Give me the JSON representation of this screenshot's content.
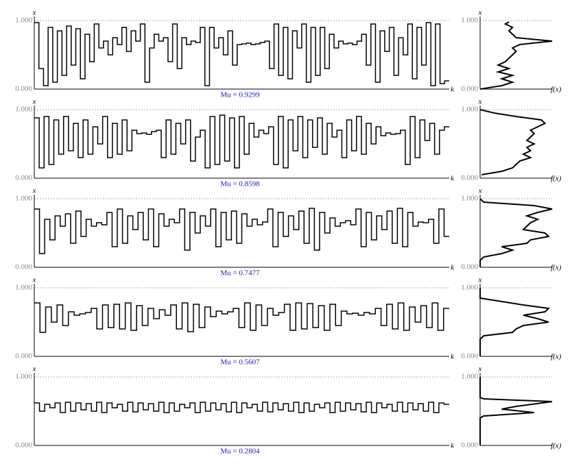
{
  "chart_data": [
    {
      "type": "step",
      "ylabel": "x",
      "xlabel": "k",
      "title": "Mu = 0.9299",
      "ylim": [
        0,
        1
      ],
      "yticks": [
        {
          "value": 0,
          "label": "0.000"
        },
        {
          "value": 1,
          "label": "1.000"
        }
      ],
      "values": [
        0.97,
        0.3,
        0.05,
        0.9,
        0.1,
        0.85,
        0.2,
        0.92,
        0.35,
        0.88,
        0.15,
        0.8,
        0.4,
        0.95,
        0.6,
        0.7,
        0.5,
        0.75,
        0.65,
        0.9,
        0.55,
        0.85,
        0.7,
        0.95,
        0.1,
        0.6,
        0.8,
        0.7,
        0.75,
        0.4,
        0.95,
        0.3,
        0.75,
        0.65,
        0.7,
        0.68,
        0.9,
        0.05,
        0.9,
        0.6,
        0.75,
        0.5,
        0.85,
        0.35,
        0.65,
        0.66,
        0.67,
        0.65,
        0.66,
        0.68,
        0.7,
        0.3,
        0.95,
        0.2,
        0.9,
        0.15,
        0.85,
        0.6,
        0.95,
        0.1,
        0.9,
        0.2,
        0.9,
        0.3,
        0.8,
        0.6,
        0.7,
        0.66,
        0.67,
        0.65,
        0.7,
        0.8,
        0.35,
        0.95,
        0.1,
        0.85,
        0.55,
        0.9,
        0.2,
        0.75,
        0.5,
        0.95,
        0.15,
        0.9,
        0.35,
        0.97,
        0.05,
        0.95,
        0.08,
        0.12
      ]
    },
    {
      "type": "density",
      "ylabel": "x",
      "xlabel": "f(x)",
      "ylim": [
        0,
        1
      ],
      "xlim": [
        0,
        1
      ],
      "yticks": [
        {
          "value": 0,
          "label": "0.000"
        },
        {
          "value": 1,
          "label": "1.000"
        }
      ],
      "levels": [
        0,
        0.05,
        0.1,
        0.15,
        0.2,
        0.25,
        0.3,
        0.35,
        0.4,
        0.45,
        0.5,
        0.55,
        0.6,
        0.65,
        0.7,
        0.75,
        0.8,
        0.85,
        0.9,
        0.95,
        0.98
      ],
      "values": [
        0,
        0.3,
        0.45,
        0.3,
        0.45,
        0.25,
        0.4,
        0.25,
        0.35,
        0.4,
        0.45,
        0.5,
        0.45,
        0.55,
        1.0,
        0.5,
        0.45,
        0.4,
        0.45,
        0.35,
        0.4
      ]
    },
    {
      "type": "step",
      "ylabel": "x",
      "xlabel": "k",
      "title": "Mu = 0.8598",
      "ylim": [
        0,
        1
      ],
      "yticks": [
        {
          "value": 0,
          "label": "0.000"
        },
        {
          "value": 1,
          "label": "1.000"
        }
      ],
      "values": [
        0.88,
        0.15,
        0.9,
        0.2,
        0.85,
        0.35,
        0.9,
        0.4,
        0.8,
        0.3,
        0.85,
        0.35,
        0.75,
        0.5,
        0.9,
        0.3,
        0.8,
        0.35,
        0.85,
        0.4,
        0.7,
        0.65,
        0.66,
        0.64,
        0.68,
        0.7,
        0.3,
        0.85,
        0.35,
        0.8,
        0.5,
        0.85,
        0.25,
        0.6,
        0.7,
        0.15,
        0.9,
        0.2,
        0.92,
        0.25,
        0.88,
        0.15,
        0.9,
        0.35,
        0.8,
        0.6,
        0.7,
        0.65,
        0.75,
        0.2,
        0.9,
        0.15,
        0.85,
        0.4,
        0.9,
        0.3,
        0.85,
        0.45,
        0.88,
        0.35,
        0.8,
        0.6,
        0.7,
        0.3,
        0.85,
        0.4,
        0.9,
        0.35,
        0.8,
        0.5,
        0.75,
        0.62,
        0.66,
        0.64,
        0.65,
        0.7,
        0.2,
        0.9,
        0.3,
        0.85,
        0.55,
        0.8,
        0.35,
        0.7,
        0.75
      ]
    },
    {
      "type": "density",
      "ylabel": "x",
      "xlabel": "f(x)",
      "ylim": [
        0,
        1
      ],
      "xlim": [
        0,
        1
      ],
      "yticks": [
        {
          "value": 0,
          "label": "0.000"
        },
        {
          "value": 1,
          "label": "1.000"
        }
      ],
      "levels": [
        0.05,
        0.1,
        0.15,
        0.2,
        0.25,
        0.3,
        0.35,
        0.4,
        0.45,
        0.5,
        0.55,
        0.6,
        0.65,
        0.7,
        0.75,
        0.8,
        0.85,
        0.9,
        0.95,
        1.0
      ],
      "values": [
        0.02,
        0.3,
        0.45,
        0.5,
        0.55,
        0.7,
        0.6,
        0.7,
        0.65,
        0.75,
        0.65,
        0.7,
        0.75,
        0.7,
        0.8,
        0.9,
        0.85,
        0.5,
        0.2,
        0.0
      ]
    },
    {
      "type": "step",
      "ylabel": "x",
      "xlabel": "k",
      "title": "Mu = 0.7477",
      "ylim": [
        0,
        1
      ],
      "yticks": [
        {
          "value": 0,
          "label": "0.000"
        },
        {
          "value": 1,
          "label": "1.000"
        }
      ],
      "values": [
        0.85,
        0.2,
        0.7,
        0.4,
        0.75,
        0.6,
        0.78,
        0.35,
        0.82,
        0.45,
        0.7,
        0.6,
        0.65,
        0.62,
        0.8,
        0.3,
        0.85,
        0.35,
        0.75,
        0.55,
        0.8,
        0.4,
        0.85,
        0.3,
        0.78,
        0.6,
        0.7,
        0.65,
        0.85,
        0.25,
        0.8,
        0.5,
        0.75,
        0.6,
        0.85,
        0.3,
        0.8,
        0.4,
        0.82,
        0.35,
        0.78,
        0.6,
        0.7,
        0.62,
        0.66,
        0.85,
        0.3,
        0.8,
        0.45,
        0.75,
        0.55,
        0.82,
        0.35,
        0.86,
        0.25,
        0.8,
        0.5,
        0.72,
        0.6,
        0.65,
        0.68,
        0.62,
        0.85,
        0.3,
        0.8,
        0.4,
        0.75,
        0.55,
        0.82,
        0.35,
        0.86,
        0.3,
        0.8,
        0.6,
        0.66,
        0.65,
        0.7,
        0.35,
        0.85,
        0.45
      ]
    },
    {
      "type": "density",
      "ylabel": "x",
      "xlabel": "f(x)",
      "ylim": [
        0,
        1
      ],
      "xlim": [
        0,
        1
      ],
      "yticks": [
        {
          "value": 0,
          "label": "0.000"
        },
        {
          "value": 1,
          "label": "1.000"
        }
      ],
      "levels": [
        0,
        0.1,
        0.15,
        0.2,
        0.25,
        0.3,
        0.35,
        0.4,
        0.45,
        0.5,
        0.55,
        0.6,
        0.65,
        0.7,
        0.75,
        0.8,
        0.85,
        0.9,
        0.95,
        1.0
      ],
      "values": [
        0,
        0,
        0.05,
        0.3,
        0.45,
        0.3,
        0.65,
        0.7,
        0.95,
        0.9,
        0.6,
        0.65,
        0.7,
        0.8,
        0.65,
        0.8,
        1.0,
        0.75,
        0.05,
        0
      ]
    },
    {
      "type": "step",
      "ylabel": "x",
      "xlabel": "k",
      "title": "Mu = 0.5607",
      "ylim": [
        0,
        1
      ],
      "yticks": [
        {
          "value": 0,
          "label": "0.000"
        },
        {
          "value": 1,
          "label": "1.000"
        }
      ],
      "values": [
        0.78,
        0.35,
        0.72,
        0.5,
        0.75,
        0.45,
        0.65,
        0.6,
        0.62,
        0.64,
        0.7,
        0.4,
        0.75,
        0.42,
        0.76,
        0.4,
        0.78,
        0.38,
        0.74,
        0.45,
        0.7,
        0.55,
        0.68,
        0.6,
        0.75,
        0.4,
        0.78,
        0.36,
        0.76,
        0.42,
        0.72,
        0.58,
        0.66,
        0.62,
        0.65,
        0.7,
        0.42,
        0.78,
        0.38,
        0.75,
        0.45,
        0.7,
        0.6,
        0.64,
        0.76,
        0.38,
        0.78,
        0.4,
        0.77,
        0.42,
        0.74,
        0.38,
        0.76,
        0.45,
        0.66,
        0.62,
        0.63,
        0.6,
        0.64,
        0.62,
        0.7,
        0.45,
        0.76,
        0.4,
        0.78,
        0.38,
        0.72,
        0.5,
        0.74,
        0.42,
        0.78,
        0.38,
        0.7
      ]
    },
    {
      "type": "density",
      "ylabel": "x",
      "xlabel": "f(x)",
      "ylim": [
        0,
        1
      ],
      "xlim": [
        0,
        1
      ],
      "yticks": [
        {
          "value": 0,
          "label": "0.000"
        },
        {
          "value": 1,
          "label": "1.000"
        }
      ],
      "levels": [
        0,
        0.25,
        0.3,
        0.35,
        0.4,
        0.45,
        0.5,
        0.55,
        0.6,
        0.65,
        0.7,
        0.75,
        0.8,
        0.85,
        1.0
      ],
      "values": [
        0,
        0,
        0.05,
        0.45,
        0.5,
        0.6,
        0.95,
        0.8,
        0.6,
        0.9,
        0.95,
        0.6,
        0.3,
        0.0,
        0
      ]
    },
    {
      "type": "step",
      "ylabel": "x",
      "xlabel": "k",
      "title": "Mu = 0.2804",
      "ylim": [
        0,
        1
      ],
      "yticks": [
        {
          "value": 0,
          "label": "0.000"
        },
        {
          "value": 1,
          "label": "1.000"
        }
      ],
      "values": [
        0.62,
        0.5,
        0.6,
        0.55,
        0.62,
        0.48,
        0.63,
        0.5,
        0.62,
        0.52,
        0.61,
        0.5,
        0.63,
        0.48,
        0.62,
        0.55,
        0.6,
        0.5,
        0.63,
        0.49,
        0.62,
        0.52,
        0.61,
        0.5,
        0.63,
        0.48,
        0.62,
        0.5,
        0.6,
        0.55,
        0.62,
        0.48,
        0.63,
        0.5,
        0.62,
        0.52,
        0.61,
        0.49,
        0.63,
        0.48,
        0.62,
        0.55,
        0.6,
        0.5,
        0.63,
        0.49,
        0.62,
        0.52,
        0.61,
        0.5,
        0.63,
        0.48,
        0.62,
        0.5,
        0.6,
        0.55,
        0.62,
        0.48,
        0.63,
        0.5,
        0.62,
        0.52,
        0.61,
        0.49,
        0.63,
        0.48,
        0.62,
        0.55,
        0.6,
        0.5,
        0.63,
        0.49,
        0.62,
        0.52,
        0.61,
        0.5,
        0.63,
        0.48,
        0.62,
        0.6
      ]
    },
    {
      "type": "density",
      "ylabel": "x",
      "xlabel": "f(x)",
      "ylim": [
        0,
        1
      ],
      "xlim": [
        0,
        1
      ],
      "yticks": [
        {
          "value": 0,
          "label": "0.000"
        },
        {
          "value": 1,
          "label": "1.000"
        }
      ],
      "levels": [
        0,
        0.4,
        0.43,
        0.48,
        0.53,
        0.57,
        0.64,
        0.68,
        0.7,
        1.0
      ],
      "values": [
        0,
        0,
        0.05,
        0.75,
        0.3,
        0.5,
        1.0,
        0.05,
        0,
        0
      ]
    }
  ]
}
